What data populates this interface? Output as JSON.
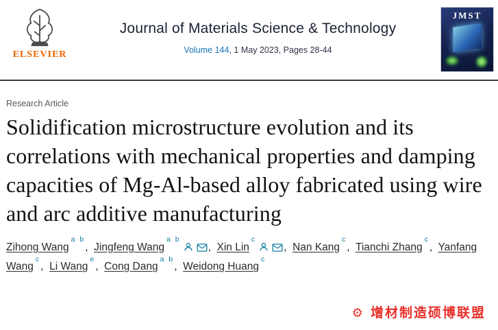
{
  "colors": {
    "accent_blue": "#1a75bb",
    "icon_teal": "#0f7ca0",
    "elsevier_orange": "#eb6500",
    "watermark_red": "#e82f2a",
    "cover_navy": "#15224f"
  },
  "header": {
    "elsevier_label": "ELSEVIER",
    "journal_title": "Journal of Materials Science & Technology",
    "volume_link": "Volume 144",
    "issue_info": ", 1 May 2023, Pages 28-44",
    "cover_label": "JMST"
  },
  "article": {
    "type_label": "Research Article",
    "title": "Solidification microstructure evolution and its correlations with mechanical properties and damping capacities of Mg-Al-based alloy fabricated using wire and arc additive manufacturing",
    "authors": [
      {
        "name": "Zihong Wang",
        "sup": "a b",
        "person_icon": false,
        "mail_icon": false
      },
      {
        "name": "Jingfeng Wang",
        "sup": "a b",
        "person_icon": true,
        "mail_icon": true
      },
      {
        "name": "Xin Lin",
        "sup": "c",
        "person_icon": true,
        "mail_icon": true
      },
      {
        "name": "Nan Kang",
        "sup": "c",
        "person_icon": false,
        "mail_icon": false
      },
      {
        "name": "Tianchi Zhang",
        "sup": "c",
        "person_icon": false,
        "mail_icon": false
      },
      {
        "name": "Yanfang Wang",
        "sup": "c",
        "person_icon": false,
        "mail_icon": false
      },
      {
        "name": "Li Wang",
        "sup": "e",
        "person_icon": false,
        "mail_icon": false
      },
      {
        "name": "Cong Dang",
        "sup": "a b",
        "person_icon": false,
        "mail_icon": false
      },
      {
        "name": "Weidong Huang",
        "sup": "c",
        "person_icon": false,
        "mail_icon": false
      }
    ]
  },
  "watermark": {
    "text": "增材制造硕博联盟"
  }
}
